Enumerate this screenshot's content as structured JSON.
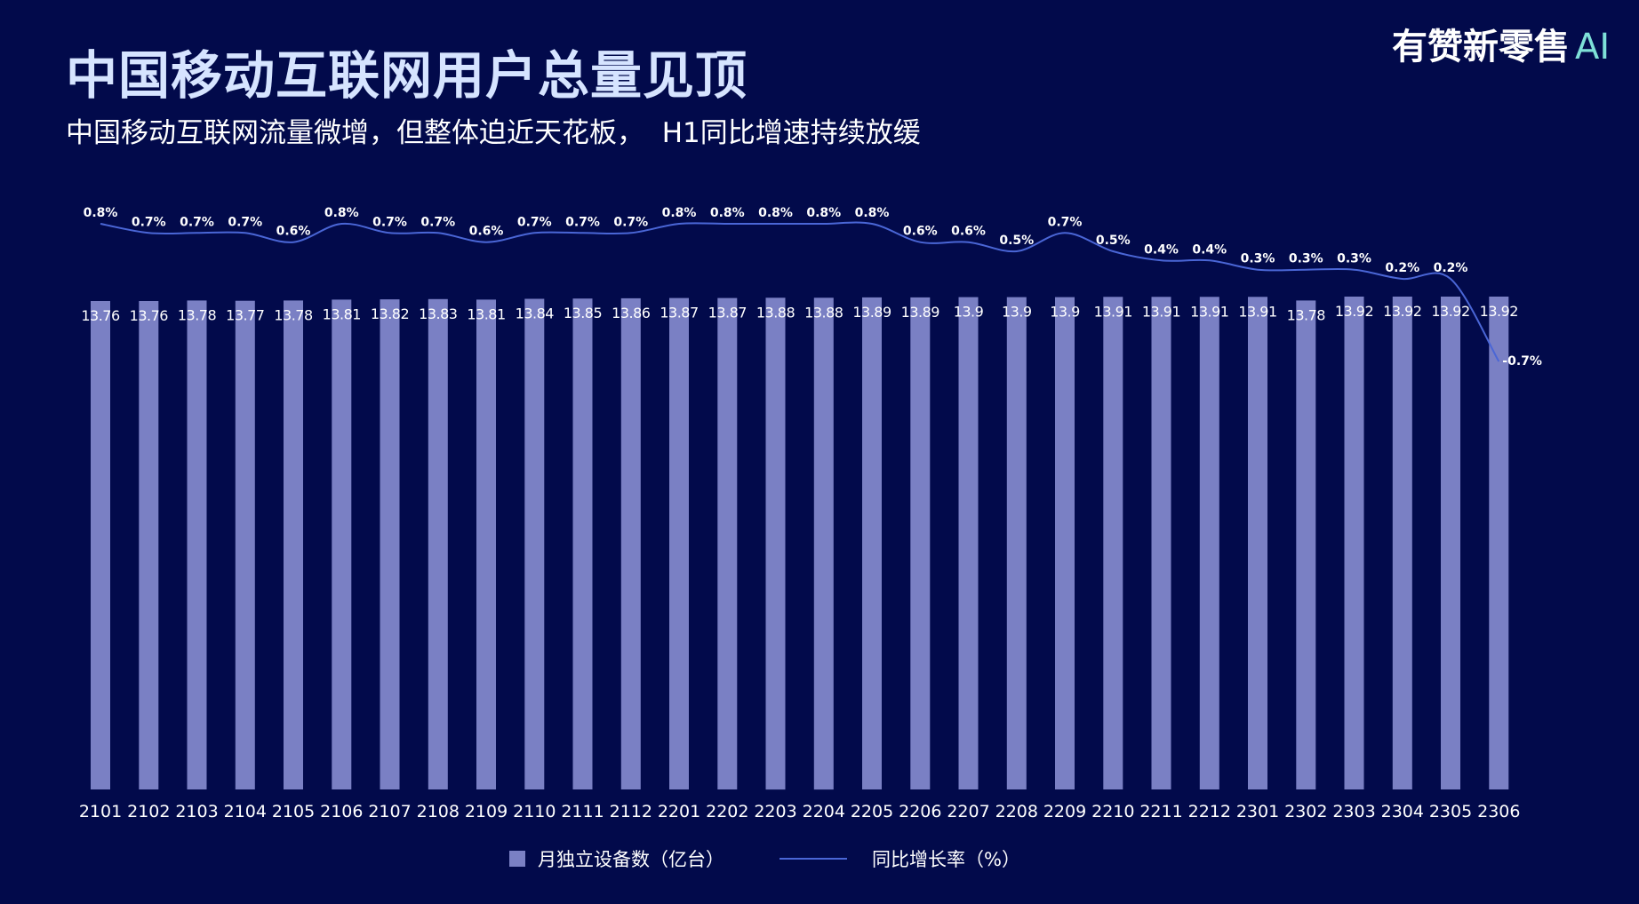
{
  "header": {
    "title": "中国移动互联网用户总量见顶",
    "subtitle": "中国移动互联网流量微增，但整体迫近天花板，  H1同比增速持续放缓",
    "logo_text": "有赞新零售",
    "logo_ai": "AI"
  },
  "colors": {
    "background": "#020a4b",
    "bar": "#7a80c4",
    "line": "#4a66d6",
    "title": "#d6e4ff"
  },
  "chart_data": {
    "type": "bar",
    "categories": [
      "2101",
      "2102",
      "2103",
      "2104",
      "2105",
      "2106",
      "2107",
      "2108",
      "2109",
      "2110",
      "2111",
      "2112",
      "2201",
      "2202",
      "2203",
      "2204",
      "2205",
      "2206",
      "2207",
      "2208",
      "2209",
      "2210",
      "2211",
      "2212",
      "2301",
      "2302",
      "2303",
      "2304",
      "2305",
      "2306"
    ],
    "series": [
      {
        "name": "月独立设备数（亿台）",
        "type": "bar",
        "values": [
          13.76,
          13.76,
          13.78,
          13.77,
          13.78,
          13.81,
          13.82,
          13.83,
          13.81,
          13.84,
          13.85,
          13.86,
          13.87,
          13.87,
          13.88,
          13.88,
          13.89,
          13.89,
          13.9,
          13.9,
          13.9,
          13.91,
          13.91,
          13.91,
          13.91,
          13.78,
          13.92,
          13.92,
          13.92,
          13.92
        ]
      },
      {
        "name": "同比增长率（%）",
        "type": "line",
        "values": [
          0.8,
          0.7,
          0.7,
          0.7,
          0.6,
          0.8,
          0.7,
          0.7,
          0.6,
          0.7,
          0.7,
          0.7,
          0.8,
          0.8,
          0.8,
          0.8,
          0.8,
          0.6,
          0.6,
          0.5,
          0.7,
          0.5,
          0.4,
          0.4,
          0.3,
          0.3,
          0.3,
          0.2,
          0.2,
          -0.7
        ],
        "labels": [
          "0.8%",
          "0.7%",
          "0.7%",
          "0.7%",
          "0.6%",
          "0.8%",
          "0.7%",
          "0.7%",
          "0.6%",
          "0.7%",
          "0.7%",
          "0.7%",
          "0.8%",
          "0.8%",
          "0.8%",
          "0.8%",
          "0.8%",
          "0.6%",
          "0.6%",
          "0.5%",
          "0.7%",
          "0.5%",
          "0.4%",
          "0.4%",
          "0.3%",
          "0.3%",
          "0.3%",
          "0.2%",
          "0.2%",
          "-0.7%"
        ]
      }
    ],
    "legend_position": "bottom",
    "grid": false
  }
}
